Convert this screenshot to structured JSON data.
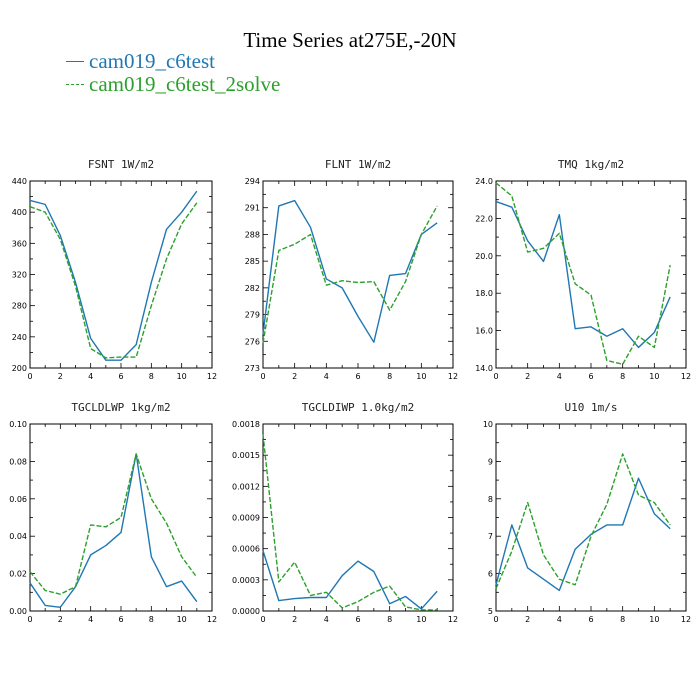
{
  "figure": {
    "title": "Time Series at275E,-20N",
    "legend": [
      {
        "label": "cam019_c6test",
        "color": "#1f77b4",
        "style": "solid"
      },
      {
        "label": "cam019_c6test_2solve",
        "color": "#2ca02c",
        "style": "dashed"
      }
    ]
  },
  "chart_data": [
    {
      "type": "line",
      "title": "FSNT   1W/m2",
      "x": [
        0,
        1,
        2,
        3,
        4,
        5,
        6,
        7,
        8,
        9,
        10,
        11
      ],
      "xlim": [
        0,
        12
      ],
      "xticks": [
        0,
        2,
        4,
        6,
        8,
        10,
        12
      ],
      "ylim": [
        200,
        440
      ],
      "yticks": [
        200,
        240,
        280,
        320,
        360,
        400,
        440
      ],
      "ytick_labels": [
        "200",
        "240",
        "280",
        "320",
        "360",
        "400",
        "440"
      ],
      "series": [
        {
          "name": "cam019_c6test",
          "values": [
            415,
            410,
            370,
            310,
            238,
            210,
            210,
            230,
            310,
            378,
            400,
            427
          ]
        },
        {
          "name": "cam019_c6test_2solve",
          "values": [
            407,
            400,
            365,
            305,
            225,
            213,
            214,
            214,
            280,
            340,
            385,
            412
          ]
        }
      ]
    },
    {
      "type": "line",
      "title": "FLNT   1W/m2",
      "x": [
        0,
        1,
        2,
        3,
        4,
        5,
        6,
        7,
        8,
        9,
        10,
        11
      ],
      "xlim": [
        0,
        12
      ],
      "xticks": [
        0,
        2,
        4,
        6,
        8,
        10,
        12
      ],
      "ylim": [
        273,
        294
      ],
      "yticks": [
        273,
        276,
        279,
        282,
        285,
        288,
        291,
        294
      ],
      "ytick_labels": [
        "273",
        "276",
        "279",
        "282",
        "285",
        "288",
        "291",
        "294"
      ],
      "series": [
        {
          "name": "cam019_c6test",
          "values": [
            276.8,
            291.2,
            291.8,
            288.8,
            283.0,
            282.0,
            278.8,
            275.9,
            283.4,
            283.6,
            288.0,
            289.3
          ]
        },
        {
          "name": "cam019_c6test_2solve",
          "values": [
            275.8,
            286.2,
            286.9,
            288.0,
            282.3,
            282.8,
            282.6,
            282.7,
            279.5,
            282.7,
            288.0,
            291.2
          ]
        }
      ]
    },
    {
      "type": "line",
      "title": "TMQ   1kg/m2",
      "x": [
        0,
        1,
        2,
        3,
        4,
        5,
        6,
        7,
        8,
        9,
        10,
        11
      ],
      "xlim": [
        0,
        12
      ],
      "xticks": [
        0,
        2,
        4,
        6,
        8,
        10,
        12
      ],
      "ylim": [
        14,
        24
      ],
      "yticks": [
        14,
        16,
        18,
        20,
        22,
        24
      ],
      "ytick_labels": [
        "14.0",
        "16.0",
        "18.0",
        "20.0",
        "22.0",
        "24.0"
      ],
      "series": [
        {
          "name": "cam019_c6test",
          "values": [
            22.9,
            22.6,
            20.8,
            19.7,
            22.2,
            16.1,
            16.2,
            15.7,
            16.1,
            15.1,
            15.9,
            17.8
          ]
        },
        {
          "name": "cam019_c6test_2solve",
          "values": [
            23.9,
            23.2,
            20.2,
            20.4,
            21.2,
            18.5,
            17.9,
            14.4,
            14.2,
            15.7,
            15.1,
            19.5
          ]
        }
      ]
    },
    {
      "type": "line",
      "title": "TGCLDLWP   1kg/m2",
      "x": [
        0,
        1,
        2,
        3,
        4,
        5,
        6,
        7,
        8,
        9,
        10,
        11
      ],
      "xlim": [
        0,
        12
      ],
      "xticks": [
        0,
        2,
        4,
        6,
        8,
        10,
        12
      ],
      "ylim": [
        0,
        0.1
      ],
      "yticks": [
        0,
        0.02,
        0.04,
        0.06,
        0.08,
        0.1
      ],
      "ytick_labels": [
        "0.00",
        "0.02",
        "0.04",
        "0.06",
        "0.08",
        "0.10"
      ],
      "series": [
        {
          "name": "cam019_c6test",
          "values": [
            0.015,
            0.003,
            0.002,
            0.013,
            0.03,
            0.035,
            0.042,
            0.084,
            0.029,
            0.013,
            0.016,
            0.005
          ]
        },
        {
          "name": "cam019_c6test_2solve",
          "values": [
            0.021,
            0.011,
            0.009,
            0.013,
            0.046,
            0.045,
            0.05,
            0.084,
            0.06,
            0.047,
            0.029,
            0.018
          ]
        }
      ]
    },
    {
      "type": "line",
      "title": "TGCLDIWP   1.0kg/m2",
      "x": [
        0,
        1,
        2,
        3,
        4,
        5,
        6,
        7,
        8,
        9,
        10,
        11
      ],
      "xlim": [
        0,
        12
      ],
      "xticks": [
        0,
        2,
        4,
        6,
        8,
        10,
        12
      ],
      "ylim": [
        0,
        0.0018
      ],
      "yticks": [
        0,
        0.0003,
        0.0006,
        0.0009,
        0.0012,
        0.0015,
        0.0018
      ],
      "ytick_labels": [
        "0.0000",
        "0.0003",
        "0.0006",
        "0.0009",
        "0.0012",
        "0.0015",
        "0.0018"
      ],
      "series": [
        {
          "name": "cam019_c6test",
          "values": [
            0.00058,
            0.0001,
            0.00012,
            0.00013,
            0.00013,
            0.00034,
            0.00048,
            0.00038,
            7e-05,
            0.00014,
            2e-05,
            0.00019
          ]
        },
        {
          "name": "cam019_c6test_2solve",
          "values": [
            0.0017,
            0.00028,
            0.00047,
            0.00015,
            0.00018,
            3e-05,
            9e-05,
            0.00018,
            0.00024,
            4e-05,
            1e-05,
            1e-05
          ]
        }
      ]
    },
    {
      "type": "line",
      "title": "U10   1m/s",
      "x": [
        0,
        1,
        2,
        3,
        4,
        5,
        6,
        7,
        8,
        9,
        10,
        11
      ],
      "xlim": [
        0,
        12
      ],
      "xticks": [
        0,
        2,
        4,
        6,
        8,
        10,
        12
      ],
      "ylim": [
        5,
        10
      ],
      "yticks": [
        5,
        6,
        7,
        8,
        9,
        10
      ],
      "ytick_labels": [
        "5",
        "6",
        "7",
        "8",
        "9",
        "10"
      ],
      "series": [
        {
          "name": "cam019_c6test",
          "values": [
            5.7,
            7.3,
            6.15,
            5.85,
            5.55,
            6.65,
            7.05,
            7.3,
            7.3,
            8.55,
            7.6,
            7.2
          ]
        },
        {
          "name": "cam019_c6test_2solve",
          "values": [
            5.6,
            6.6,
            7.9,
            6.5,
            5.85,
            5.7,
            7.0,
            7.85,
            9.2,
            8.1,
            7.9,
            7.3
          ]
        }
      ]
    }
  ]
}
